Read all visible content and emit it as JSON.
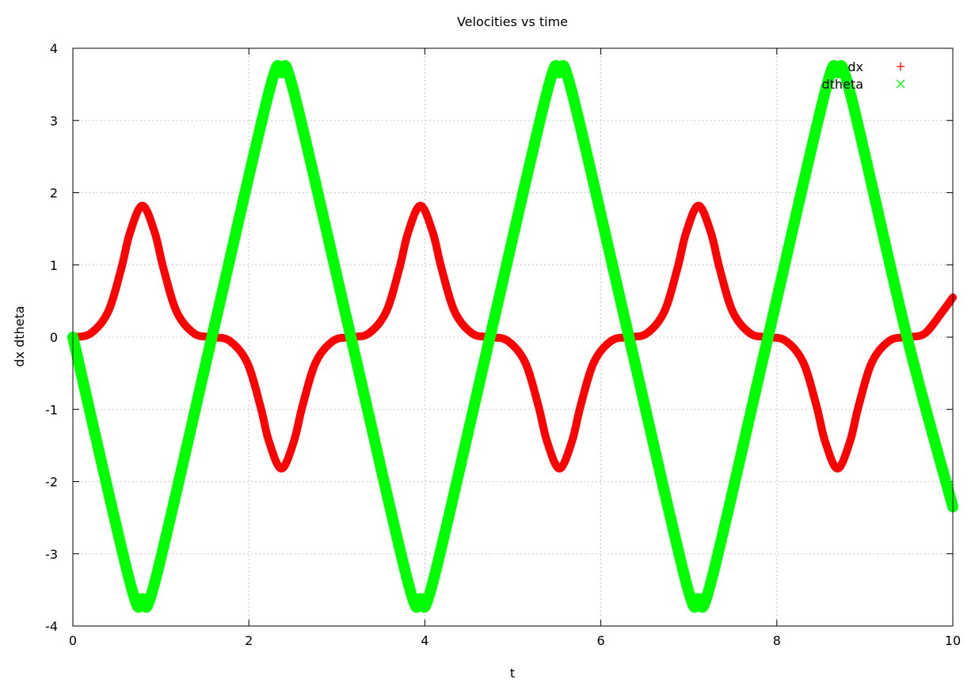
{
  "chart_data": {
    "type": "scatter",
    "title": "Velocities vs time",
    "xlabel": "t",
    "ylabel": "dx dtheta",
    "xlim": [
      0,
      10
    ],
    "ylim": [
      -4,
      4
    ],
    "grid": true,
    "legend_position": "top-right",
    "x_ticks": [
      0,
      2,
      4,
      6,
      8,
      10
    ],
    "y_ticks": [
      -4,
      -3,
      -2,
      -1,
      0,
      1,
      2,
      3,
      4
    ],
    "series": [
      {
        "name": "dx",
        "marker": "+",
        "color": "#ff0000",
        "points": [
          [
            0.0,
            0.0
          ],
          [
            0.2,
            0.05
          ],
          [
            0.4,
            0.35
          ],
          [
            0.55,
            0.95
          ],
          [
            0.65,
            1.45
          ],
          [
            0.79,
            1.82
          ],
          [
            0.93,
            1.45
          ],
          [
            1.03,
            0.95
          ],
          [
            1.18,
            0.35
          ],
          [
            1.38,
            0.05
          ],
          [
            1.58,
            0.0
          ],
          [
            1.78,
            -0.05
          ],
          [
            1.98,
            -0.35
          ],
          [
            2.13,
            -0.95
          ],
          [
            2.23,
            -1.45
          ],
          [
            2.37,
            -1.82
          ],
          [
            2.51,
            -1.45
          ],
          [
            2.61,
            -0.95
          ],
          [
            2.76,
            -0.35
          ],
          [
            2.96,
            -0.05
          ],
          [
            3.16,
            0.0
          ],
          [
            3.36,
            0.05
          ],
          [
            3.56,
            0.35
          ],
          [
            3.71,
            0.95
          ],
          [
            3.81,
            1.45
          ],
          [
            3.95,
            1.82
          ],
          [
            4.09,
            1.45
          ],
          [
            4.19,
            0.95
          ],
          [
            4.34,
            0.35
          ],
          [
            4.54,
            0.05
          ],
          [
            4.74,
            0.0
          ],
          [
            4.94,
            -0.05
          ],
          [
            5.14,
            -0.35
          ],
          [
            5.29,
            -0.95
          ],
          [
            5.39,
            -1.45
          ],
          [
            5.53,
            -1.82
          ],
          [
            5.67,
            -1.45
          ],
          [
            5.77,
            -0.95
          ],
          [
            5.92,
            -0.35
          ],
          [
            6.12,
            -0.05
          ],
          [
            6.32,
            0.0
          ],
          [
            6.52,
            0.05
          ],
          [
            6.72,
            0.35
          ],
          [
            6.87,
            0.95
          ],
          [
            6.97,
            1.45
          ],
          [
            7.11,
            1.82
          ],
          [
            7.25,
            1.45
          ],
          [
            7.35,
            0.95
          ],
          [
            7.5,
            0.35
          ],
          [
            7.7,
            0.05
          ],
          [
            7.9,
            0.0
          ],
          [
            8.1,
            -0.05
          ],
          [
            8.3,
            -0.35
          ],
          [
            8.45,
            -0.95
          ],
          [
            8.55,
            -1.45
          ],
          [
            8.69,
            -1.82
          ],
          [
            8.83,
            -1.45
          ],
          [
            8.93,
            -0.95
          ],
          [
            9.08,
            -0.35
          ],
          [
            9.28,
            -0.05
          ],
          [
            9.48,
            0.0
          ],
          [
            9.68,
            0.05
          ],
          [
            9.88,
            0.35
          ],
          [
            10.0,
            0.55
          ]
        ]
      },
      {
        "name": "dtheta",
        "marker": "x",
        "color": "#00ff00",
        "points": [
          [
            0.0,
            0.0
          ],
          [
            0.65,
            -3.4
          ],
          [
            0.79,
            -3.62
          ],
          [
            0.93,
            -3.4
          ],
          [
            1.58,
            0.0
          ],
          [
            2.23,
            3.4
          ],
          [
            2.37,
            3.66
          ],
          [
            2.51,
            3.4
          ],
          [
            3.16,
            0.0
          ],
          [
            3.81,
            -3.4
          ],
          [
            3.95,
            -3.62
          ],
          [
            4.09,
            -3.4
          ],
          [
            4.74,
            0.0
          ],
          [
            5.39,
            3.4
          ],
          [
            5.53,
            3.66
          ],
          [
            5.67,
            3.4
          ],
          [
            6.32,
            0.0
          ],
          [
            6.97,
            -3.4
          ],
          [
            7.11,
            -3.62
          ],
          [
            7.25,
            -3.4
          ],
          [
            7.9,
            0.0
          ],
          [
            8.55,
            3.4
          ],
          [
            8.69,
            3.66
          ],
          [
            8.83,
            3.4
          ],
          [
            9.48,
            0.0
          ],
          [
            10.0,
            -2.35
          ]
        ]
      }
    ]
  }
}
